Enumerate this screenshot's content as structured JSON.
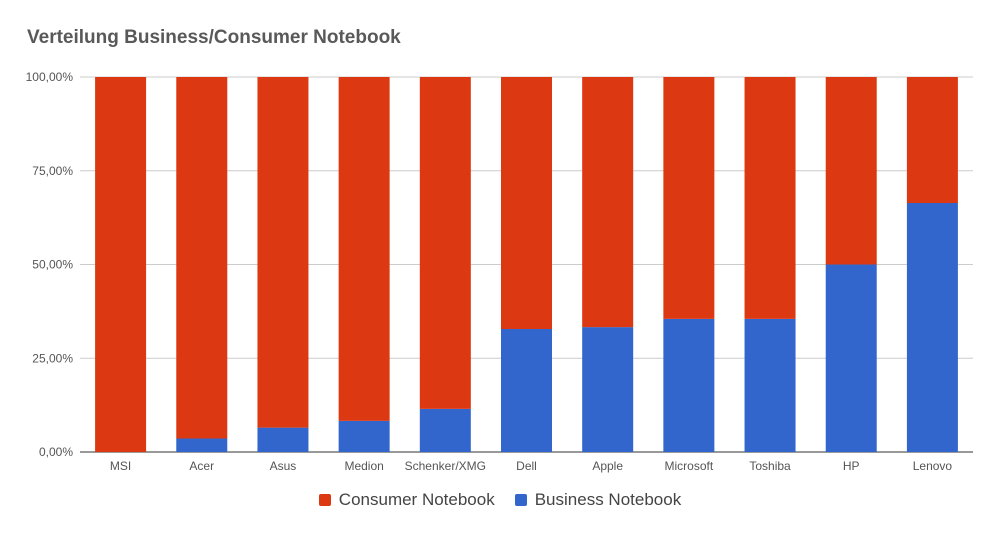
{
  "chart_data": {
    "type": "bar",
    "stacked": true,
    "title": "Verteilung Business/Consumer Notebook",
    "categories": [
      "MSI",
      "Acer",
      "Asus",
      "Medion",
      "Schenker/XMG",
      "Dell",
      "Apple",
      "Microsoft",
      "Toshiba",
      "HP",
      "Lenovo"
    ],
    "series": [
      {
        "name": "Business Notebook",
        "color": "#3366CC",
        "values": [
          0,
          3.6,
          6.5,
          8.3,
          11.5,
          32.8,
          33.3,
          35.5,
          35.5,
          50.0,
          66.4
        ]
      },
      {
        "name": "Consumer Notebook",
        "color": "#DC3912",
        "values": [
          100,
          96.4,
          93.5,
          91.7,
          88.5,
          67.2,
          66.7,
          64.5,
          64.5,
          50.0,
          33.6
        ]
      }
    ],
    "ylim": [
      0,
      100
    ],
    "yticks": [
      "0,00%",
      "25,00%",
      "50,00%",
      "75,00%",
      "100,00%"
    ],
    "ytick_values": [
      0,
      25,
      50,
      75,
      100
    ],
    "grid": true,
    "legend_position": "bottom",
    "legend": [
      {
        "name": "Consumer Notebook",
        "color": "#DC3912"
      },
      {
        "name": "Business Notebook",
        "color": "#3366CC"
      }
    ]
  }
}
